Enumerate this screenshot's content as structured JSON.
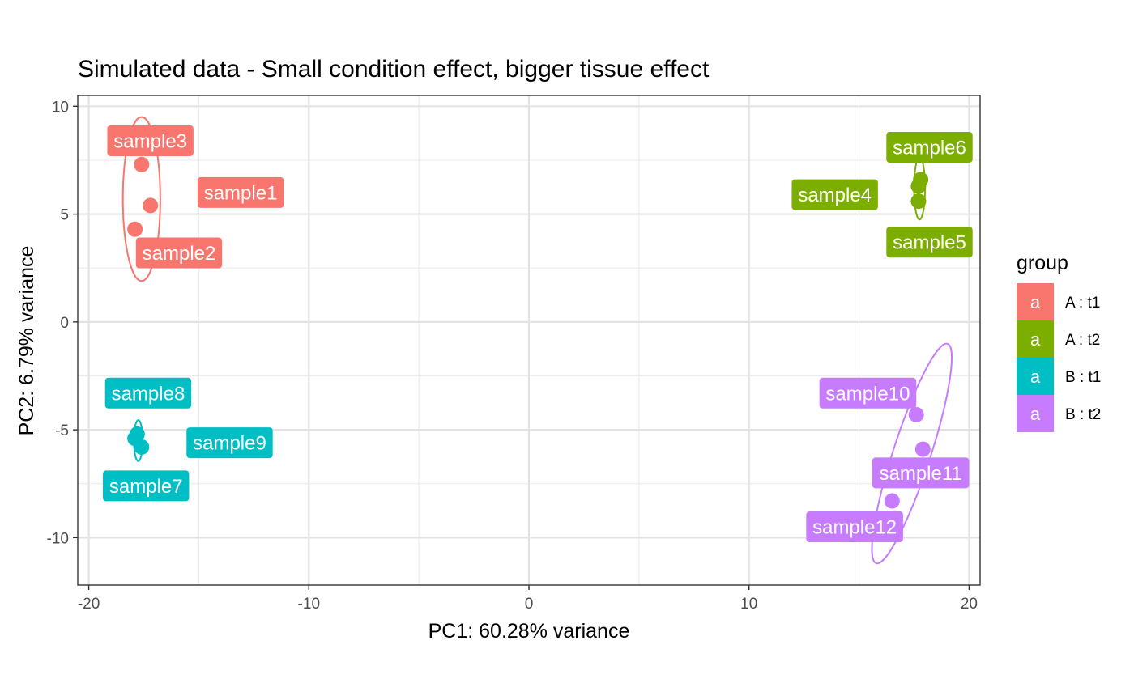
{
  "chart_data": {
    "type": "scatter",
    "title": "Simulated data - Small condition effect, bigger tissue effect",
    "xlabel": "PC1: 60.28% variance",
    "ylabel": "PC2: 6.79% variance",
    "xlim": [
      -20.5,
      20.5
    ],
    "ylim": [
      -12.2,
      10.5
    ],
    "x_ticks": [
      -20,
      -10,
      0,
      10,
      20
    ],
    "y_ticks": [
      -10,
      -5,
      0,
      5,
      10
    ],
    "x_tick_labels": [
      "-20",
      "-10",
      "0",
      "10",
      "20"
    ],
    "y_tick_labels": [
      "-10",
      "-5",
      "0",
      "5",
      "10"
    ],
    "grid": true,
    "legend_position": "right",
    "legend": {
      "title": "group",
      "key_letter": "a",
      "entries": [
        {
          "label": "A : t1",
          "color": "#F8766D"
        },
        {
          "label": "A : t2",
          "color": "#7CAE00"
        },
        {
          "label": "B : t1",
          "color": "#00BFC4"
        },
        {
          "label": "B : t2",
          "color": "#C77CFF"
        }
      ]
    },
    "series": [
      {
        "group": "A : t1",
        "color": "#F8766D",
        "points": [
          {
            "label": "sample1",
            "x": -17.2,
            "y": 5.4,
            "lx": -13.1,
            "ly": 6.0
          },
          {
            "label": "sample2",
            "x": -17.9,
            "y": 4.3,
            "lx": -15.9,
            "ly": 3.2
          },
          {
            "label": "sample3",
            "x": -17.6,
            "y": 7.3,
            "lx": -17.2,
            "ly": 8.4
          }
        ]
      },
      {
        "group": "A : t2",
        "color": "#7CAE00",
        "points": [
          {
            "label": "sample4",
            "x": 17.7,
            "y": 6.3,
            "lx": 13.9,
            "ly": 5.9
          },
          {
            "label": "sample5",
            "x": 17.7,
            "y": 5.6,
            "lx": 18.2,
            "ly": 3.7
          },
          {
            "label": "sample6",
            "x": 17.8,
            "y": 6.6,
            "lx": 18.2,
            "ly": 8.1
          }
        ]
      },
      {
        "group": "B : t1",
        "color": "#00BFC4",
        "points": [
          {
            "label": "sample7",
            "x": -17.9,
            "y": -5.4,
            "lx": -17.4,
            "ly": -7.6
          },
          {
            "label": "sample8",
            "x": -17.8,
            "y": -5.2,
            "lx": -17.3,
            "ly": -3.3
          },
          {
            "label": "sample9",
            "x": -17.6,
            "y": -5.8,
            "lx": -13.6,
            "ly": -5.6
          }
        ]
      },
      {
        "group": "B : t2",
        "color": "#C77CFF",
        "points": [
          {
            "label": "sample10",
            "x": 17.6,
            "y": -4.3,
            "lx": 15.4,
            "ly": -3.3
          },
          {
            "label": "sample11",
            "x": 17.9,
            "y": -5.9,
            "lx": 17.8,
            "ly": -7.0
          },
          {
            "label": "sample12",
            "x": 16.5,
            "y": -8.3,
            "lx": 14.8,
            "ly": -9.5
          }
        ]
      }
    ],
    "ellipses": [
      {
        "group": "A : t1",
        "color": "#F8766D",
        "cx": -17.6,
        "cy": 5.7,
        "rx": 0.85,
        "ry": 3.8,
        "rotation": 0
      },
      {
        "group": "A : t2",
        "color": "#7CAE00",
        "cx": 17.75,
        "cy": 6.2,
        "rx": 0.25,
        "ry": 1.45,
        "rotation": 0
      },
      {
        "group": "B : t1",
        "color": "#00BFC4",
        "cx": -17.75,
        "cy": -5.5,
        "rx": 0.2,
        "ry": 0.95,
        "rotation": 0
      },
      {
        "group": "B : t2",
        "color": "#C77CFF",
        "cx": 17.4,
        "cy": -6.1,
        "rx": 0.85,
        "ry": 5.35,
        "rotation": 18
      }
    ]
  }
}
